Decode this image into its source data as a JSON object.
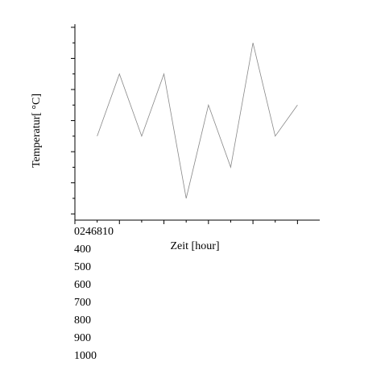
{
  "chart_data": {
    "type": "line",
    "x_label": "Zeit [hour]",
    "y_label": "Temperatur[ °C]",
    "x": [
      1,
      2,
      3,
      4,
      5,
      6,
      7,
      8,
      9,
      10
    ],
    "series": [
      {
        "color": "#888888",
        "values": [
          650,
          850,
          650,
          850,
          450,
          750,
          550,
          950,
          650,
          750
        ]
      }
    ],
    "xlim": [
      0,
      11
    ],
    "xticks": [
      0,
      2,
      4,
      6,
      8,
      10
    ],
    "ylim": [
      380,
      1010
    ],
    "yticks": [
      400,
      500,
      600,
      700,
      800,
      900,
      1000
    ]
  }
}
